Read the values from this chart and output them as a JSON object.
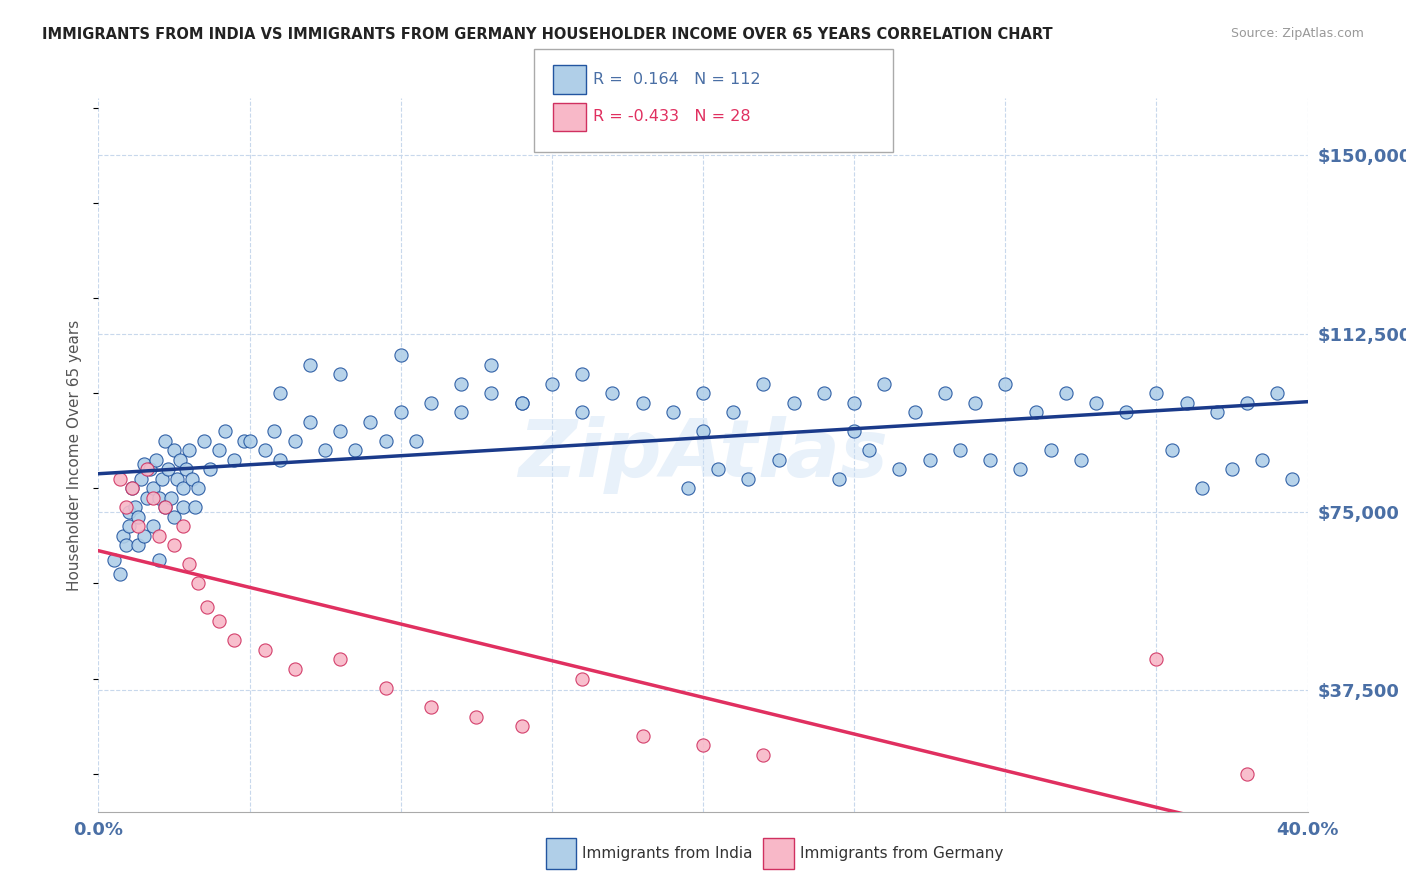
{
  "title": "IMMIGRANTS FROM INDIA VS IMMIGRANTS FROM GERMANY HOUSEHOLDER INCOME OVER 65 YEARS CORRELATION CHART",
  "source": "Source: ZipAtlas.com",
  "ylabel": "Householder Income Over 65 years",
  "xlim": [
    0.0,
    0.4
  ],
  "ylim": [
    12000,
    162000
  ],
  "yticks": [
    37500,
    75000,
    112500,
    150000
  ],
  "ytick_labels": [
    "$37,500",
    "$75,000",
    "$112,500",
    "$150,000"
  ],
  "xticks": [
    0.0,
    0.05,
    0.1,
    0.15,
    0.2,
    0.25,
    0.3,
    0.35,
    0.4
  ],
  "india_R": 0.164,
  "india_N": 112,
  "germany_R": -0.433,
  "germany_N": 28,
  "india_color": "#b0cfe8",
  "india_edge_color": "#2255a0",
  "india_line_color": "#1a3a8a",
  "germany_color": "#f8b8c8",
  "germany_edge_color": "#d03060",
  "germany_line_color": "#e03060",
  "axis_tick_color": "#4a6fa5",
  "grid_color": "#c8d8ec",
  "watermark": "ZipAtlas",
  "india_x": [
    0.005,
    0.007,
    0.008,
    0.009,
    0.01,
    0.01,
    0.011,
    0.012,
    0.013,
    0.013,
    0.014,
    0.015,
    0.015,
    0.016,
    0.017,
    0.018,
    0.018,
    0.019,
    0.02,
    0.02,
    0.021,
    0.022,
    0.022,
    0.023,
    0.024,
    0.025,
    0.025,
    0.026,
    0.027,
    0.028,
    0.028,
    0.029,
    0.03,
    0.031,
    0.032,
    0.033,
    0.035,
    0.037,
    0.04,
    0.042,
    0.045,
    0.048,
    0.05,
    0.055,
    0.058,
    0.06,
    0.065,
    0.07,
    0.075,
    0.08,
    0.085,
    0.09,
    0.095,
    0.1,
    0.105,
    0.11,
    0.12,
    0.13,
    0.14,
    0.15,
    0.16,
    0.17,
    0.18,
    0.19,
    0.2,
    0.2,
    0.21,
    0.22,
    0.23,
    0.24,
    0.25,
    0.25,
    0.26,
    0.27,
    0.28,
    0.29,
    0.3,
    0.31,
    0.32,
    0.33,
    0.34,
    0.35,
    0.36,
    0.37,
    0.38,
    0.39,
    0.195,
    0.205,
    0.215,
    0.225,
    0.245,
    0.255,
    0.265,
    0.275,
    0.285,
    0.295,
    0.305,
    0.315,
    0.325,
    0.355,
    0.365,
    0.375,
    0.385,
    0.395,
    0.06,
    0.07,
    0.08,
    0.1,
    0.12,
    0.13,
    0.14,
    0.16
  ],
  "india_y": [
    65000,
    62000,
    70000,
    68000,
    75000,
    72000,
    80000,
    76000,
    68000,
    74000,
    82000,
    85000,
    70000,
    78000,
    84000,
    80000,
    72000,
    86000,
    78000,
    65000,
    82000,
    76000,
    90000,
    84000,
    78000,
    88000,
    74000,
    82000,
    86000,
    80000,
    76000,
    84000,
    88000,
    82000,
    76000,
    80000,
    90000,
    84000,
    88000,
    92000,
    86000,
    90000,
    90000,
    88000,
    92000,
    86000,
    90000,
    94000,
    88000,
    92000,
    88000,
    94000,
    90000,
    96000,
    90000,
    98000,
    96000,
    100000,
    98000,
    102000,
    96000,
    100000,
    98000,
    96000,
    100000,
    92000,
    96000,
    102000,
    98000,
    100000,
    98000,
    92000,
    102000,
    96000,
    100000,
    98000,
    102000,
    96000,
    100000,
    98000,
    96000,
    100000,
    98000,
    96000,
    98000,
    100000,
    80000,
    84000,
    82000,
    86000,
    82000,
    88000,
    84000,
    86000,
    88000,
    86000,
    84000,
    88000,
    86000,
    88000,
    80000,
    84000,
    86000,
    82000,
    100000,
    106000,
    104000,
    108000,
    102000,
    106000,
    98000,
    104000
  ],
  "germany_x": [
    0.007,
    0.009,
    0.011,
    0.013,
    0.016,
    0.018,
    0.02,
    0.022,
    0.025,
    0.028,
    0.03,
    0.033,
    0.036,
    0.04,
    0.045,
    0.055,
    0.065,
    0.08,
    0.095,
    0.11,
    0.125,
    0.14,
    0.16,
    0.18,
    0.2,
    0.22,
    0.35,
    0.38
  ],
  "germany_y": [
    82000,
    76000,
    80000,
    72000,
    84000,
    78000,
    70000,
    76000,
    68000,
    72000,
    64000,
    60000,
    55000,
    52000,
    48000,
    46000,
    42000,
    44000,
    38000,
    34000,
    32000,
    30000,
    40000,
    28000,
    26000,
    24000,
    44000,
    20000
  ]
}
